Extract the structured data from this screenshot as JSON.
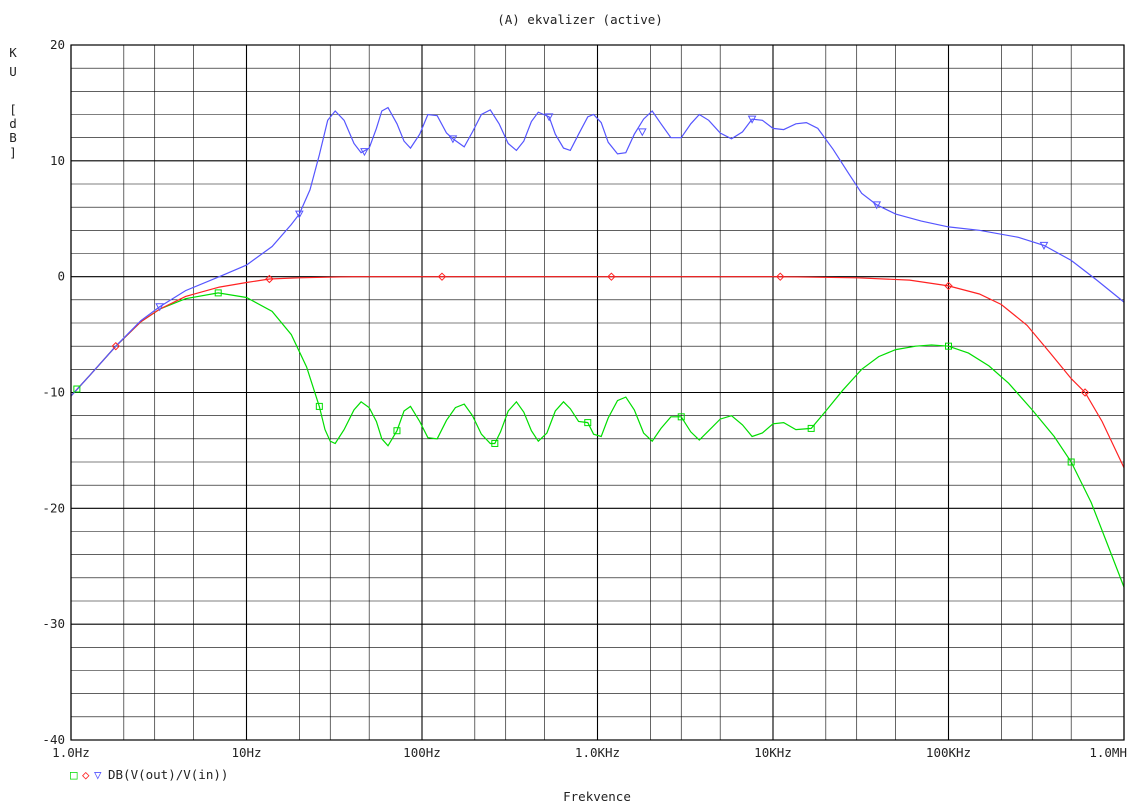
{
  "chart_data": {
    "type": "line",
    "title": "(A) ekvalizer (active)",
    "xlabel": "Frekvence",
    "ylabel": [
      "K",
      "U",
      "",
      "[",
      "d",
      "B",
      "]"
    ],
    "x_scale": "log",
    "xlim": [
      1,
      1000000
    ],
    "ylim": [
      -40,
      20
    ],
    "y_ticks": [
      20,
      10,
      0,
      -10,
      -20,
      -30,
      -40
    ],
    "y_tick_labels": [
      "20",
      "10",
      "0",
      "-10",
      "-20",
      "-30",
      "-40"
    ],
    "x_ticks": [
      1,
      10,
      100,
      1000,
      10000,
      100000,
      1000000
    ],
    "x_tick_labels": [
      "1.0Hz",
      "10Hz",
      "100Hz",
      "1.0KHz",
      "10KHz",
      "100KHz",
      "1.0MH"
    ],
    "grid": true,
    "legend": {
      "position": "bottom-left",
      "label": "DB(V(out)/V(in))",
      "symbols": [
        "□",
        "◇",
        "▽"
      ]
    },
    "series": [
      {
        "color": "#00dd00",
        "marker": "square",
        "points": [
          [
            1,
            -10.3
          ],
          [
            1.3,
            -8.4
          ],
          [
            1.8,
            -6.0
          ],
          [
            2.5,
            -3.9
          ],
          [
            3.2,
            -2.8
          ],
          [
            4.5,
            -1.9
          ],
          [
            6.9,
            -1.4
          ],
          [
            10,
            -1.8
          ],
          [
            14,
            -3.0
          ],
          [
            18,
            -5.0
          ],
          [
            22,
            -7.8
          ],
          [
            26,
            -11.2
          ],
          [
            28,
            -13.2
          ],
          [
            30,
            -14.2
          ],
          [
            32,
            -14.4
          ],
          [
            36,
            -13.2
          ],
          [
            41,
            -11.5
          ],
          [
            45,
            -10.8
          ],
          [
            50,
            -11.3
          ],
          [
            55,
            -12.5
          ],
          [
            59,
            -14.0
          ],
          [
            64,
            -14.6
          ],
          [
            72,
            -13.3
          ],
          [
            79,
            -11.6
          ],
          [
            86,
            -11.2
          ],
          [
            97,
            -12.5
          ],
          [
            108,
            -13.9
          ],
          [
            122,
            -14.0
          ],
          [
            138,
            -12.4
          ],
          [
            155,
            -11.3
          ],
          [
            174,
            -11.0
          ],
          [
            194,
            -12.0
          ],
          [
            218,
            -13.6
          ],
          [
            245,
            -14.4
          ],
          [
            260,
            -14.4
          ],
          [
            280,
            -13.4
          ],
          [
            310,
            -11.6
          ],
          [
            345,
            -10.8
          ],
          [
            380,
            -11.7
          ],
          [
            420,
            -13.3
          ],
          [
            460,
            -14.2
          ],
          [
            515,
            -13.5
          ],
          [
            575,
            -11.6
          ],
          [
            640,
            -10.8
          ],
          [
            700,
            -11.4
          ],
          [
            780,
            -12.5
          ],
          [
            880,
            -12.6
          ],
          [
            950,
            -13.6
          ],
          [
            1050,
            -13.8
          ],
          [
            1150,
            -12.2
          ],
          [
            1300,
            -10.7
          ],
          [
            1450,
            -10.4
          ],
          [
            1620,
            -11.5
          ],
          [
            1830,
            -13.5
          ],
          [
            2050,
            -14.2
          ],
          [
            2300,
            -13.1
          ],
          [
            2620,
            -12.1
          ],
          [
            3000,
            -12.1
          ],
          [
            3400,
            -13.4
          ],
          [
            3800,
            -14.1
          ],
          [
            4300,
            -13.3
          ],
          [
            5000,
            -12.3
          ],
          [
            5800,
            -12.0
          ],
          [
            6700,
            -12.8
          ],
          [
            7600,
            -13.8
          ],
          [
            8700,
            -13.5
          ],
          [
            10000,
            -12.7
          ],
          [
            11500,
            -12.6
          ],
          [
            13500,
            -13.2
          ],
          [
            16500,
            -13.1
          ],
          [
            20000,
            -11.6
          ],
          [
            25000,
            -9.8
          ],
          [
            32000,
            -8.0
          ],
          [
            40000,
            -6.9
          ],
          [
            50000,
            -6.3
          ],
          [
            65000,
            -6.0
          ],
          [
            80000,
            -5.9
          ],
          [
            100000,
            -6.0
          ],
          [
            130000,
            -6.6
          ],
          [
            170000,
            -7.7
          ],
          [
            220000,
            -9.2
          ],
          [
            300000,
            -11.5
          ],
          [
            400000,
            -13.8
          ],
          [
            500000,
            -16.0
          ],
          [
            650000,
            -19.5
          ],
          [
            800000,
            -23.0
          ],
          [
            1000000,
            -26.8
          ]
        ],
        "marker_points": [
          [
            1.08,
            -9.7
          ],
          [
            6.9,
            -1.4
          ],
          [
            26,
            -11.2
          ],
          [
            72,
            -13.3
          ],
          [
            260,
            -14.4
          ],
          [
            880,
            -12.6
          ],
          [
            3000,
            -12.1
          ],
          [
            16500,
            -13.1
          ],
          [
            100000,
            -6.0
          ],
          [
            500000,
            -16.0
          ]
        ]
      },
      {
        "color": "#ff2222",
        "marker": "diamond",
        "points": [
          [
            1,
            -10.3
          ],
          [
            1.3,
            -8.4
          ],
          [
            1.8,
            -6.0
          ],
          [
            2.5,
            -3.9
          ],
          [
            3.2,
            -2.8
          ],
          [
            4.5,
            -1.7
          ],
          [
            7,
            -0.9
          ],
          [
            10,
            -0.5
          ],
          [
            13.5,
            -0.2
          ],
          [
            20,
            -0.1
          ],
          [
            40,
            0.0
          ],
          [
            130,
            0.0
          ],
          [
            1200,
            0.0
          ],
          [
            11000,
            0.0
          ],
          [
            30000,
            -0.1
          ],
          [
            60000,
            -0.3
          ],
          [
            100000,
            -0.8
          ],
          [
            150000,
            -1.5
          ],
          [
            200000,
            -2.4
          ],
          [
            280000,
            -4.2
          ],
          [
            380000,
            -6.6
          ],
          [
            500000,
            -8.8
          ],
          [
            600000,
            -10.0
          ],
          [
            750000,
            -12.5
          ],
          [
            1000000,
            -16.5
          ]
        ],
        "marker_points": [
          [
            1.8,
            -6.0
          ],
          [
            13.5,
            -0.2
          ],
          [
            130,
            0.0
          ],
          [
            1200,
            0.0
          ],
          [
            11000,
            0.0
          ],
          [
            100000,
            -0.8
          ],
          [
            600000,
            -10.0
          ]
        ]
      },
      {
        "color": "#5555ff",
        "marker": "triangle-down",
        "points": [
          [
            1,
            -10.3
          ],
          [
            1.3,
            -8.4
          ],
          [
            1.8,
            -6.0
          ],
          [
            2.5,
            -3.8
          ],
          [
            3.2,
            -2.6
          ],
          [
            4.5,
            -1.2
          ],
          [
            7,
            0.0
          ],
          [
            10,
            1.0
          ],
          [
            14,
            2.6
          ],
          [
            18,
            4.5
          ],
          [
            20,
            5.4
          ],
          [
            23,
            7.5
          ],
          [
            26,
            10.5
          ],
          [
            29,
            13.5
          ],
          [
            32,
            14.3
          ],
          [
            36,
            13.5
          ],
          [
            41,
            11.5
          ],
          [
            45,
            10.7
          ],
          [
            50,
            11.1
          ],
          [
            55,
            12.8
          ],
          [
            59,
            14.3
          ],
          [
            64,
            14.6
          ],
          [
            72,
            13.2
          ],
          [
            79,
            11.7
          ],
          [
            86,
            11.1
          ],
          [
            97,
            12.3
          ],
          [
            108,
            14.0
          ],
          [
            122,
            13.9
          ],
          [
            138,
            12.4
          ],
          [
            150,
            11.9
          ],
          [
            174,
            11.2
          ],
          [
            194,
            12.5
          ],
          [
            218,
            14.0
          ],
          [
            245,
            14.4
          ],
          [
            275,
            13.2
          ],
          [
            310,
            11.5
          ],
          [
            345,
            10.9
          ],
          [
            380,
            11.7
          ],
          [
            420,
            13.4
          ],
          [
            460,
            14.2
          ],
          [
            530,
            13.8
          ],
          [
            575,
            12.3
          ],
          [
            640,
            11.1
          ],
          [
            700,
            10.9
          ],
          [
            780,
            12.3
          ],
          [
            880,
            13.8
          ],
          [
            950,
            14.0
          ],
          [
            1050,
            13.3
          ],
          [
            1150,
            11.6
          ],
          [
            1300,
            10.6
          ],
          [
            1450,
            10.7
          ],
          [
            1620,
            12.3
          ],
          [
            1830,
            13.6
          ],
          [
            2050,
            14.3
          ],
          [
            2300,
            13.2
          ],
          [
            2620,
            12.0
          ],
          [
            3000,
            12.0
          ],
          [
            3400,
            13.2
          ],
          [
            3800,
            14.0
          ],
          [
            4300,
            13.5
          ],
          [
            5000,
            12.4
          ],
          [
            5800,
            11.9
          ],
          [
            6700,
            12.5
          ],
          [
            7600,
            13.6
          ],
          [
            8700,
            13.5
          ],
          [
            10000,
            12.8
          ],
          [
            11500,
            12.7
          ],
          [
            13500,
            13.2
          ],
          [
            15500,
            13.3
          ],
          [
            18000,
            12.8
          ],
          [
            22000,
            11.0
          ],
          [
            27000,
            8.9
          ],
          [
            32000,
            7.2
          ],
          [
            39000,
            6.2
          ],
          [
            50000,
            5.4
          ],
          [
            70000,
            4.8
          ],
          [
            100000,
            4.3
          ],
          [
            150000,
            4.0
          ],
          [
            250000,
            3.4
          ],
          [
            350000,
            2.7
          ],
          [
            500000,
            1.4
          ],
          [
            700000,
            -0.3
          ],
          [
            1000000,
            -2.2
          ]
        ],
        "marker_points": [
          [
            3.2,
            -2.6
          ],
          [
            20,
            5.4
          ],
          [
            47,
            10.8
          ],
          [
            150,
            11.9
          ],
          [
            530,
            13.8
          ],
          [
            1800,
            12.5
          ],
          [
            7600,
            13.6
          ],
          [
            39000,
            6.2
          ],
          [
            350000,
            2.7
          ]
        ]
      }
    ]
  }
}
